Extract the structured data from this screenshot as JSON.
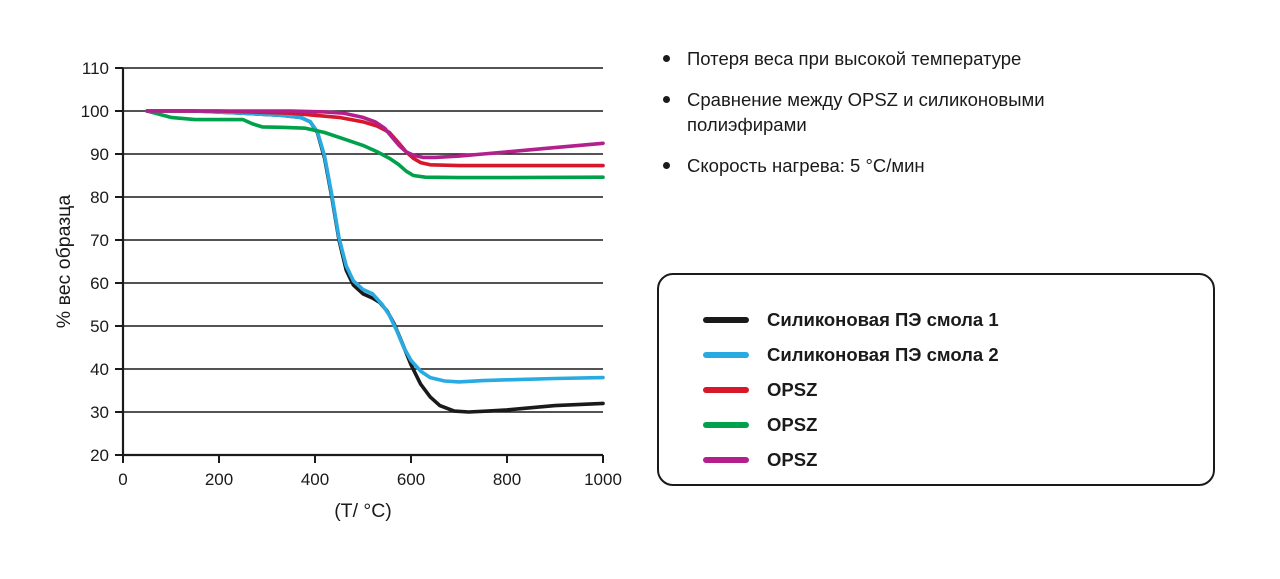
{
  "notes": {
    "bullets": [
      "Потеря веса при высокой температуре",
      "Сравнение между OPSZ и силиконовыми полиэфирами",
      "Скорость нагрева: 5 °C/мин"
    ]
  },
  "chart_data": {
    "type": "line",
    "title": "",
    "xlabel": "(T/ °C)",
    "ylabel": "% вес образца",
    "xlim": [
      0,
      1000
    ],
    "ylim": [
      20,
      110
    ],
    "xticks": [
      0,
      200,
      400,
      600,
      800,
      1000
    ],
    "yticks": [
      20,
      30,
      40,
      50,
      60,
      70,
      80,
      90,
      100,
      110
    ],
    "grid": "horizontal",
    "legend_position": "right",
    "series": [
      {
        "name": "Силиконовая ПЭ смола 1",
        "color": "#1a1a1a",
        "x": [
          50,
          150,
          250,
          330,
          370,
          390,
          405,
          420,
          435,
          450,
          465,
          480,
          500,
          520,
          535,
          550,
          565,
          580,
          600,
          620,
          640,
          660,
          690,
          720,
          760,
          800,
          900,
          1000
        ],
        "y": [
          100,
          100,
          99.5,
          99,
          98.5,
          97.5,
          95,
          89,
          80,
          70,
          63,
          59.5,
          57.5,
          56.5,
          55.5,
          53.5,
          50.5,
          46.5,
          41,
          36.5,
          33.5,
          31.5,
          30.2,
          30,
          30.2,
          30.5,
          31.5,
          32
        ]
      },
      {
        "name": "Силиконовая ПЭ смола 2",
        "color": "#29abe2",
        "x": [
          50,
          150,
          250,
          330,
          370,
          390,
          405,
          420,
          435,
          450,
          465,
          480,
          500,
          520,
          540,
          555,
          570,
          585,
          600,
          620,
          640,
          670,
          700,
          750,
          800,
          900,
          1000
        ],
        "y": [
          100,
          100,
          99.5,
          99,
          98.5,
          97.5,
          95.2,
          89.5,
          80.5,
          70.5,
          64,
          60.5,
          58.5,
          57.5,
          55,
          52.5,
          49,
          45,
          42,
          39.5,
          38,
          37.2,
          37,
          37.3,
          37.5,
          37.8,
          38
        ]
      },
      {
        "name": "OPSZ",
        "color": "#d7182a",
        "x": [
          50,
          200,
          350,
          400,
          450,
          500,
          530,
          555,
          575,
          590,
          605,
          620,
          640,
          700,
          800,
          1000
        ],
        "y": [
          100,
          100,
          99.5,
          99,
          98.5,
          97.5,
          96.5,
          95,
          92.5,
          90.5,
          89,
          88,
          87.5,
          87.3,
          87.3,
          87.3
        ]
      },
      {
        "name": "OPSZ",
        "color": "#00a14b",
        "x": [
          50,
          100,
          150,
          250,
          270,
          290,
          330,
          380,
          420,
          460,
          500,
          530,
          555,
          575,
          590,
          605,
          630,
          700,
          800,
          1000
        ],
        "y": [
          100,
          98.5,
          98,
          98,
          97,
          96.3,
          96.2,
          96,
          95,
          93.5,
          92,
          90.5,
          89,
          87.5,
          86,
          85,
          84.6,
          84.5,
          84.5,
          84.6
        ]
      },
      {
        "name": "OPSZ",
        "color": "#b3208c",
        "x": [
          50,
          200,
          350,
          420,
          460,
          500,
          525,
          545,
          560,
          575,
          590,
          605,
          625,
          650,
          700,
          750,
          800,
          900,
          1000
        ],
        "y": [
          100,
          100,
          100,
          99.8,
          99.5,
          98.5,
          97.5,
          96,
          94,
          92,
          90.5,
          89.7,
          89.2,
          89.2,
          89.5,
          90,
          90.5,
          91.5,
          92.5
        ]
      }
    ]
  }
}
